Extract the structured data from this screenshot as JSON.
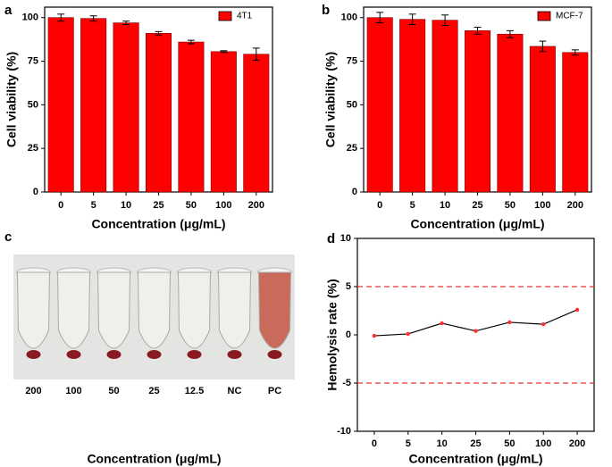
{
  "chart_data": [
    {
      "type": "bar",
      "panel_label": "a",
      "xlabel": "Concentration (μg/mL)",
      "ylabel": "Cell viability (%)",
      "categories": [
        "0",
        "5",
        "10",
        "25",
        "50",
        "100",
        "200"
      ],
      "series": [
        {
          "name": "4T1",
          "color": "#ff0000",
          "values": [
            100,
            99.5,
            97,
            91,
            86,
            80.5,
            79
          ],
          "errors": [
            2,
            1.5,
            1,
            1,
            1,
            0.5,
            3.5
          ]
        }
      ],
      "ylim": [
        0,
        106
      ],
      "yticks": [
        0,
        25,
        50,
        75,
        100
      ],
      "legend": "upper right"
    },
    {
      "type": "bar",
      "panel_label": "b",
      "xlabel": "Concentration (μg/mL)",
      "ylabel": "Cell viability (%)",
      "categories": [
        "0",
        "5",
        "10",
        "25",
        "50",
        "100",
        "200"
      ],
      "series": [
        {
          "name": "MCF-7",
          "color": "#ff0000",
          "values": [
            100,
            99,
            98.5,
            92.5,
            90.5,
            83.5,
            80
          ],
          "errors": [
            3,
            3,
            3,
            2,
            2,
            3,
            1.5
          ]
        }
      ],
      "ylim": [
        0,
        106
      ],
      "yticks": [
        0,
        25,
        50,
        75,
        100
      ],
      "legend": "upper right"
    },
    {
      "type": "photo",
      "panel_label": "c",
      "xlabel": "Concentration (μg/mL)",
      "categories": [
        "200",
        "100",
        "50",
        "25",
        "12.5",
        "NC",
        "PC"
      ]
    },
    {
      "type": "line",
      "panel_label": "d",
      "xlabel": "Concentration (μg/mL)",
      "ylabel": "Hemolysis rate (%)",
      "categories": [
        "0",
        "5",
        "10",
        "25",
        "50",
        "100",
        "200"
      ],
      "values": [
        -0.1,
        0.1,
        1.2,
        0.4,
        1.3,
        1.1,
        2.6
      ],
      "color": "#000000",
      "marker_color": "#ff3030",
      "hlines": [
        5,
        -5
      ],
      "hline_color": "#e83030",
      "ylim": [
        -10,
        10
      ],
      "yticks": [
        -10,
        -5,
        0,
        5,
        10
      ]
    }
  ]
}
